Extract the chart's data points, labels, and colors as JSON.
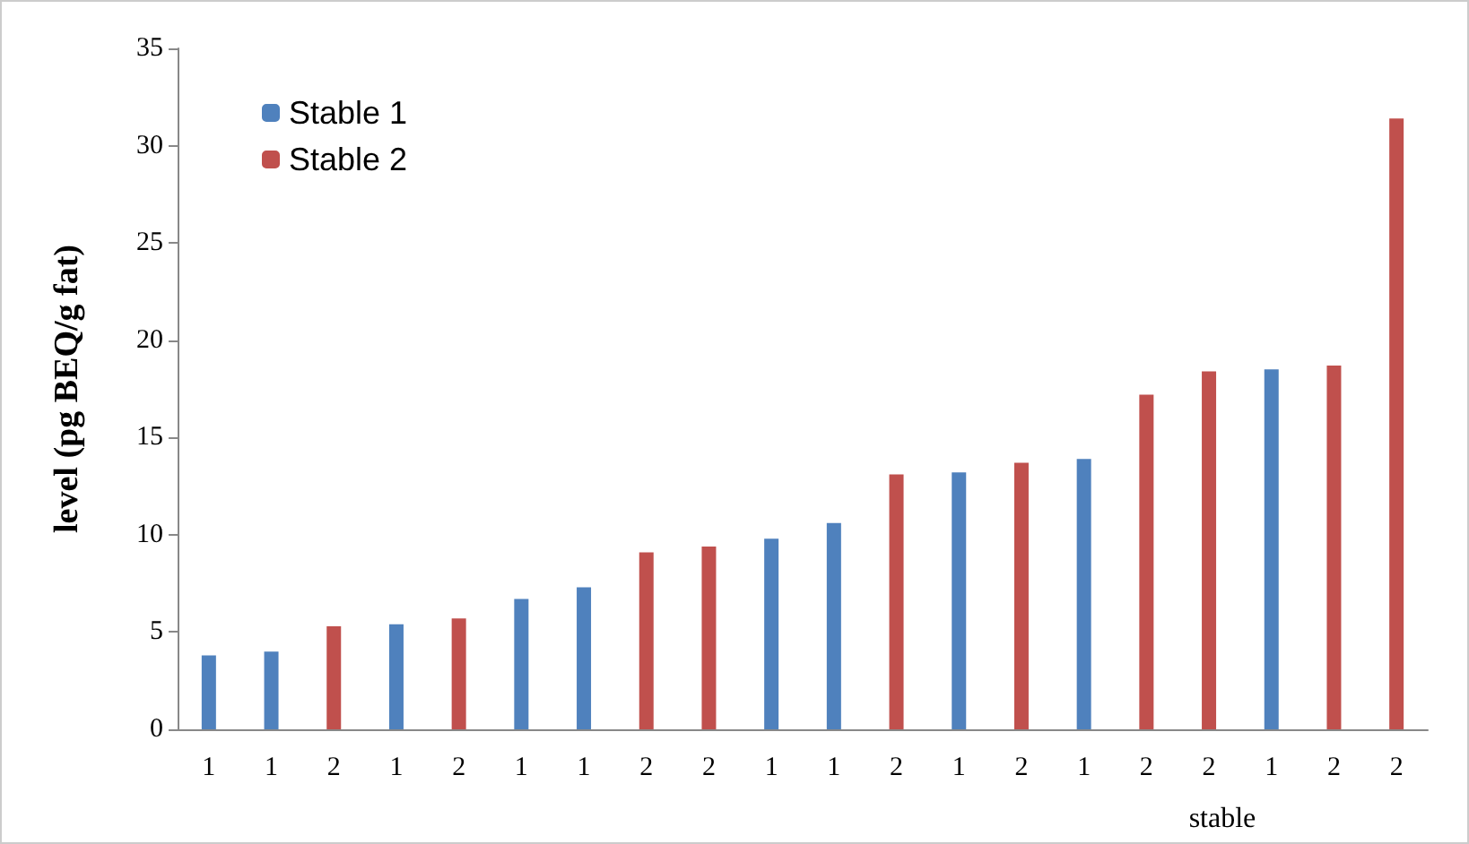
{
  "chart_data": {
    "type": "bar",
    "xlabel": "stable",
    "ylabel": "level (pg BEQ/g fat)",
    "categories": [
      "1",
      "1",
      "2",
      "1",
      "2",
      "1",
      "1",
      "2",
      "2",
      "1",
      "1",
      "2",
      "1",
      "2",
      "1",
      "2",
      "2",
      "1",
      "2",
      "2"
    ],
    "series": [
      {
        "name": "Stable 1",
        "color": "#4f81bd",
        "values": [
          3.8,
          4.0,
          null,
          5.4,
          null,
          6.7,
          7.3,
          null,
          null,
          9.8,
          10.6,
          null,
          13.2,
          null,
          13.9,
          null,
          null,
          18.5,
          null,
          null
        ]
      },
      {
        "name": "Stable 2",
        "color": "#c0504d",
        "values": [
          null,
          null,
          5.3,
          null,
          5.7,
          null,
          null,
          9.1,
          9.4,
          null,
          null,
          13.1,
          null,
          13.7,
          null,
          17.2,
          18.4,
          null,
          18.7,
          31.4
        ]
      }
    ],
    "ylim": [
      0,
      35
    ],
    "yticks": [
      0,
      5,
      10,
      15,
      20,
      25,
      30,
      35
    ],
    "grid": false,
    "legend": "top left"
  }
}
